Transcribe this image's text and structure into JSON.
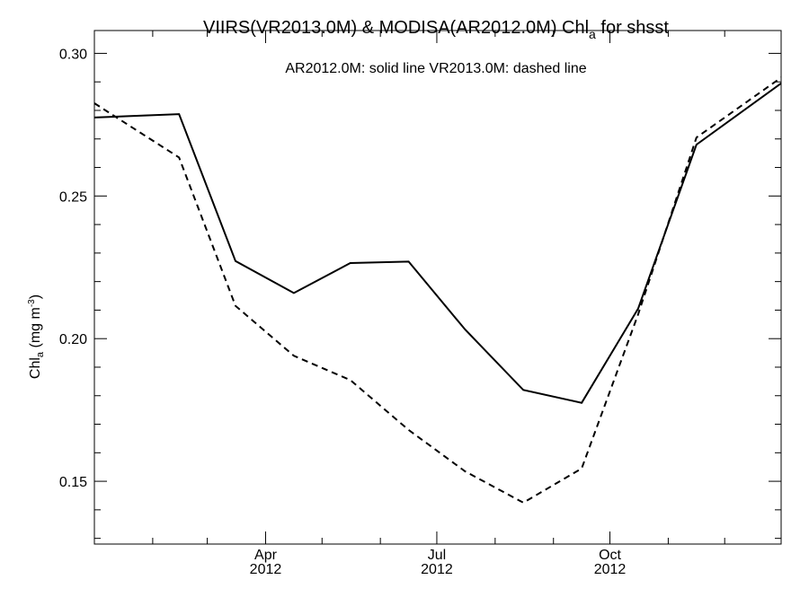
{
  "chart_data": {
    "type": "line",
    "title": {
      "main": "VIIRS(VR2013.0M) & MODISA(AR2012.0M)  Chl",
      "subscript": "a",
      "suffix": " for shsst"
    },
    "annotation": "AR2012.0M: solid line   VR2013.0M: dashed line",
    "ylabel": {
      "main": "Chl",
      "subscript": "a",
      "unit_open": " (mg m",
      "unit_sup": "-3",
      "unit_close": ")"
    },
    "ylim": [
      0.128,
      0.308
    ],
    "yticks": [
      {
        "value": 0.15,
        "label": "0.15"
      },
      {
        "value": 0.2,
        "label": "0.20"
      },
      {
        "value": 0.25,
        "label": "0.25"
      },
      {
        "value": 0.3,
        "label": "0.30"
      }
    ],
    "yminor_step": 0.01,
    "xlim": [
      "2012-01-01",
      "2012-12-31"
    ],
    "xticks": [
      {
        "date": "2012-04-01",
        "label": "Apr",
        "year": "2012"
      },
      {
        "date": "2012-07-01",
        "label": "Jul",
        "year": "2012"
      },
      {
        "date": "2012-10-01",
        "label": "Oct",
        "year": "2012"
      }
    ],
    "xminor": [
      "2012-02-01",
      "2012-03-01",
      "2012-05-01",
      "2012-06-01",
      "2012-08-01",
      "2012-09-01",
      "2012-11-01",
      "2012-12-01"
    ],
    "x": [
      "2012-01-01",
      "2012-02-15",
      "2012-03-16",
      "2012-04-16",
      "2012-05-16",
      "2012-06-16",
      "2012-07-16",
      "2012-08-16",
      "2012-09-16",
      "2012-10-16",
      "2012-11-16",
      "2012-12-31"
    ],
    "series": [
      {
        "name": "AR2012.0M",
        "style": "solid",
        "color": "#000000",
        "values": [
          0.2775,
          0.2787,
          0.2272,
          0.216,
          0.2265,
          0.227,
          0.2032,
          0.182,
          0.1775,
          0.2105,
          0.268,
          0.2895
        ]
      },
      {
        "name": "VR2013.0M",
        "style": "dashed",
        "color": "#000000",
        "values": [
          0.2825,
          0.2635,
          0.2115,
          0.194,
          0.1855,
          0.168,
          0.1535,
          0.1425,
          0.1545,
          0.2085,
          0.2705,
          0.2915
        ]
      }
    ]
  }
}
